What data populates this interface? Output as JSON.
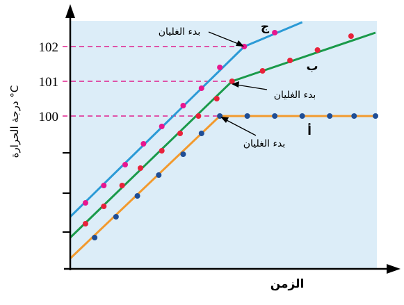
{
  "chart_data": {
    "type": "line",
    "title": "",
    "xlabel": "الزمن",
    "ylabel": "درجة الحرارة °C",
    "ylim": [
      96.1,
      102.6
    ],
    "xlim": [
      0,
      10
    ],
    "grid": false,
    "y_ticks": [
      100,
      101,
      102
    ],
    "y_tick_labels": [
      "100",
      "101",
      "102"
    ],
    "reference_lines": [
      100,
      101,
      102
    ],
    "series": [
      {
        "name": "ج",
        "color": "#2b9ad6",
        "marker_color": "#e8168f",
        "line": [
          [
            0,
            97.1
          ],
          [
            5.7,
            102
          ],
          [
            7.6,
            102.7
          ]
        ],
        "markers": [
          [
            0.5,
            97.5
          ],
          [
            1.1,
            98
          ],
          [
            1.8,
            98.6
          ],
          [
            2.4,
            99.2
          ],
          [
            3.0,
            99.7
          ],
          [
            3.7,
            100.3
          ],
          [
            4.3,
            100.8
          ],
          [
            4.9,
            101.4
          ],
          [
            5.7,
            102
          ],
          [
            6.7,
            102.4
          ]
        ],
        "annotation": "بدء الغليان"
      },
      {
        "name": "ب",
        "color": "#1a9a4a",
        "marker_color": "#e8223b",
        "line": [
          [
            0,
            96.5
          ],
          [
            5.3,
            101
          ],
          [
            10,
            102.4
          ]
        ],
        "markers": [
          [
            0.5,
            96.9
          ],
          [
            1.1,
            97.4
          ],
          [
            1.7,
            98
          ],
          [
            2.3,
            98.5
          ],
          [
            3.0,
            99
          ],
          [
            3.6,
            99.5
          ],
          [
            4.2,
            100
          ],
          [
            4.8,
            100.5
          ],
          [
            5.3,
            101
          ],
          [
            6.3,
            101.3
          ],
          [
            7.2,
            101.6
          ],
          [
            8.1,
            101.9
          ],
          [
            9.2,
            102.3
          ]
        ],
        "annotation": "بدء الغليان"
      },
      {
        "name": "أ",
        "color": "#f29a2e",
        "marker_color": "#1f4e96",
        "line": [
          [
            0,
            95.9
          ],
          [
            4.9,
            100
          ],
          [
            10,
            100
          ]
        ],
        "markers": [
          [
            0.8,
            96.5
          ],
          [
            1.5,
            97.1
          ],
          [
            2.2,
            97.7
          ],
          [
            2.9,
            98.3
          ],
          [
            3.7,
            98.9
          ],
          [
            4.3,
            99.5
          ],
          [
            4.9,
            100
          ],
          [
            5.8,
            100
          ],
          [
            6.7,
            100
          ],
          [
            7.6,
            100
          ],
          [
            8.5,
            100
          ],
          [
            9.3,
            100
          ],
          [
            10,
            100
          ]
        ],
        "annotation": "بدء الغليان"
      }
    ]
  }
}
